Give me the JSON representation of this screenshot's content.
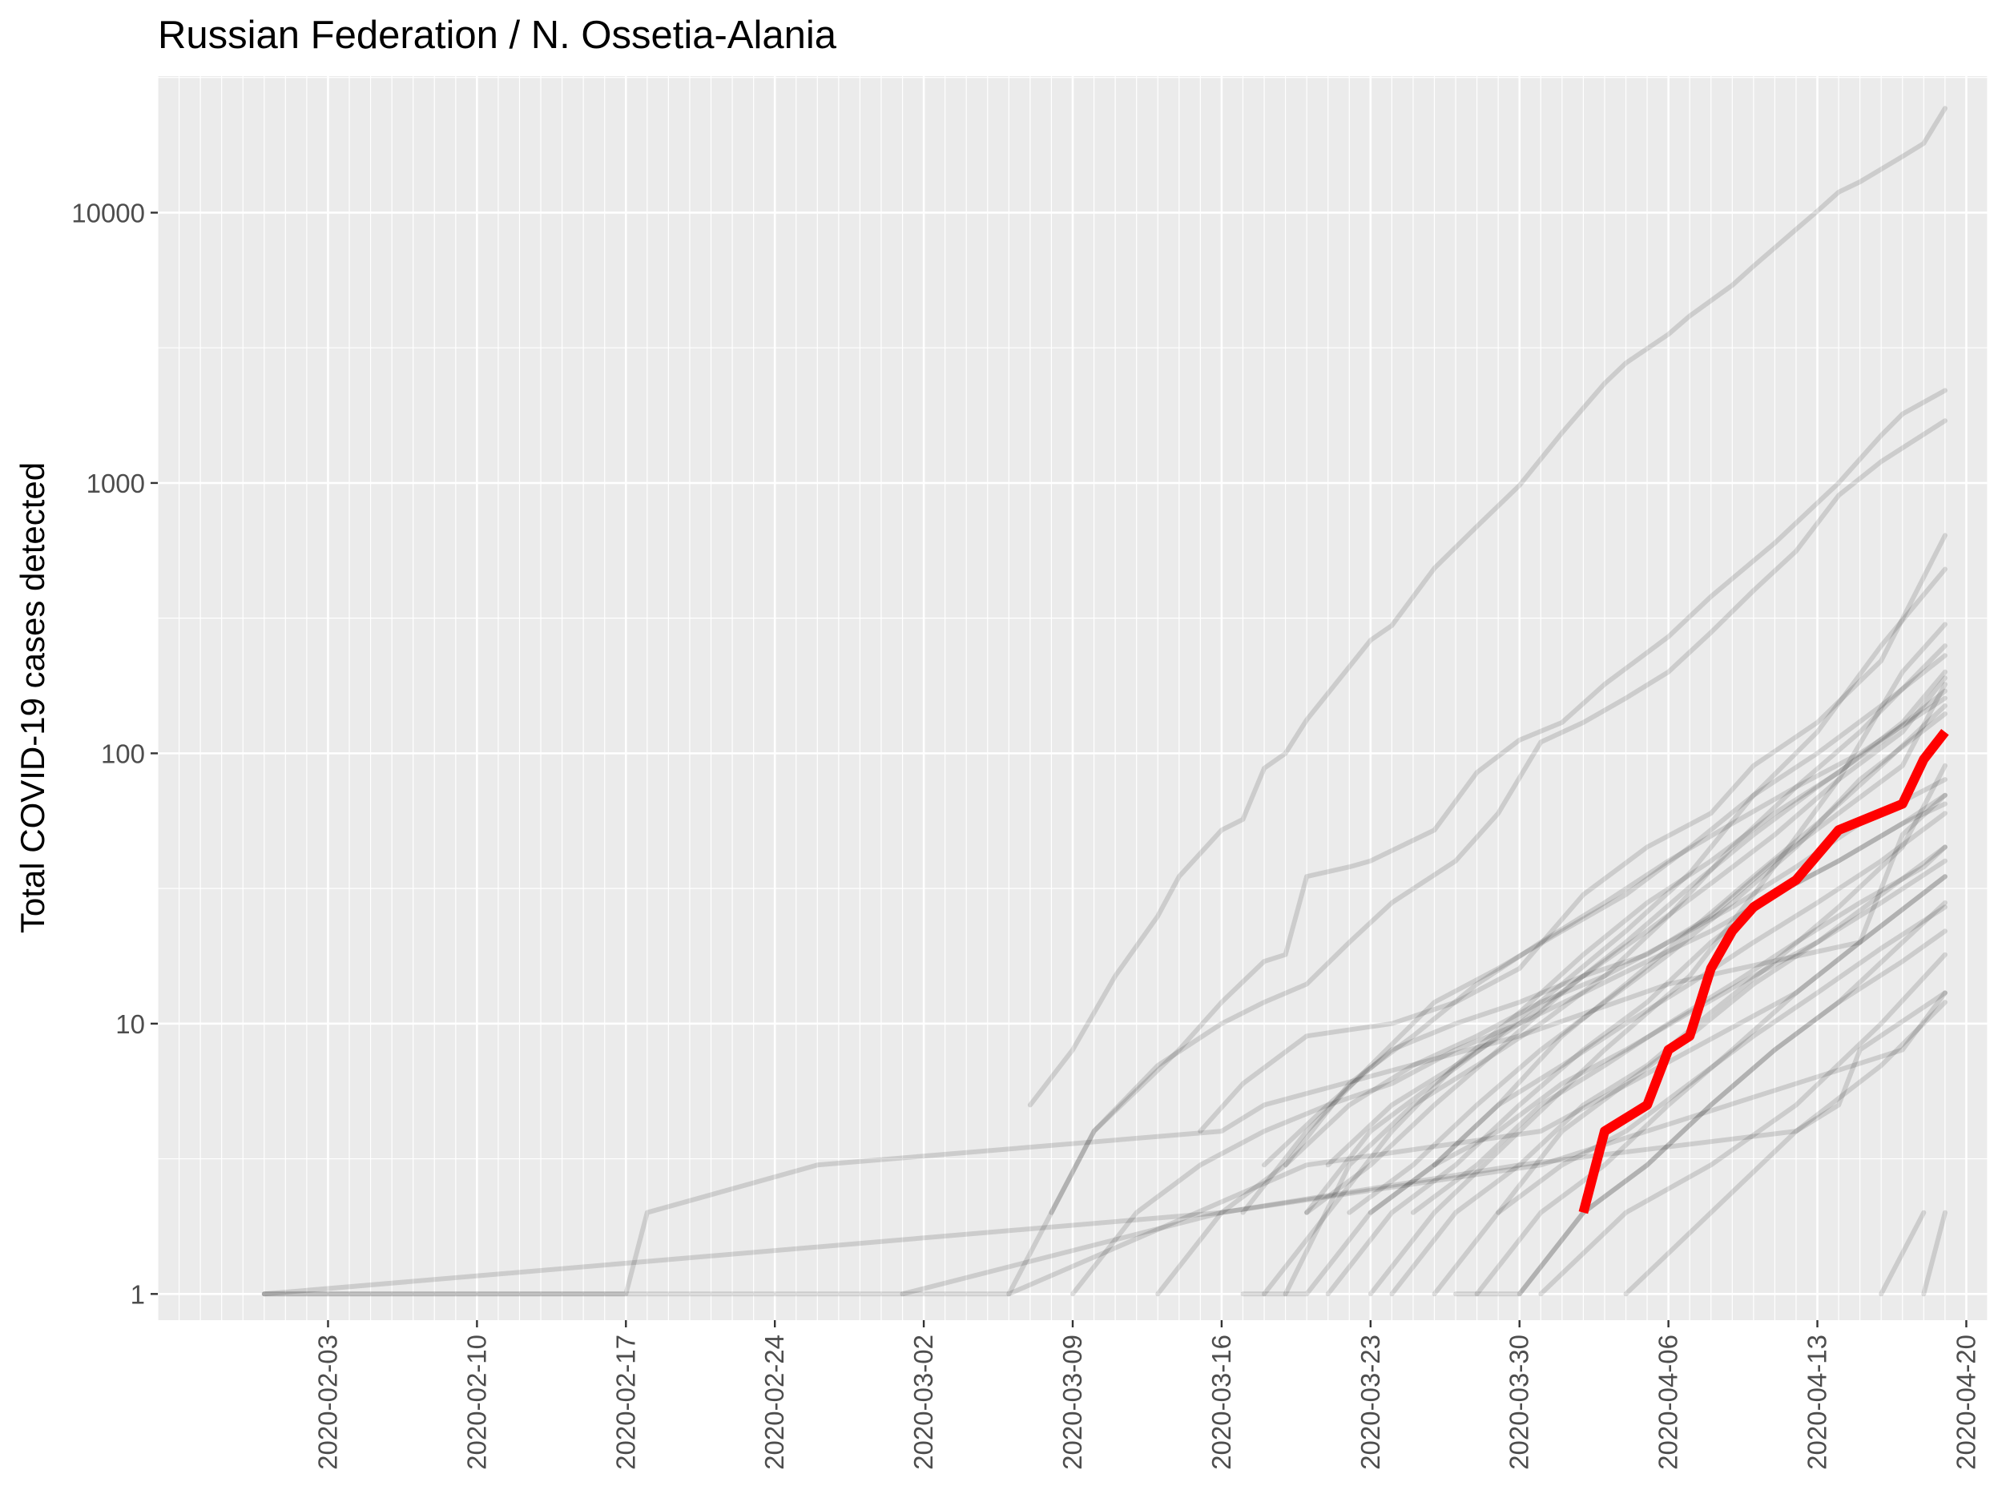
{
  "chart_data": {
    "type": "line",
    "title": "Russian Federation / N. Ossetia-Alania",
    "xlabel": "",
    "ylabel": "Total COVID-19 cases detected",
    "y_scale": "log10",
    "ylim": [
      0.8,
      32000
    ],
    "xlim": [
      "2020-01-26",
      "2020-04-21"
    ],
    "grid": true,
    "legend": "none",
    "x_ticks": [
      "2020-02-03",
      "2020-02-10",
      "2020-02-17",
      "2020-02-24",
      "2020-03-02",
      "2020-03-09",
      "2020-03-16",
      "2020-03-23",
      "2020-03-30",
      "2020-04-06",
      "2020-04-13",
      "2020-04-20"
    ],
    "y_ticks": [
      1,
      10,
      100,
      1000,
      10000
    ],
    "y_tick_labels": [
      "1",
      "10",
      "100",
      "1000",
      "10000"
    ],
    "colors": {
      "panel": "#ebebeb",
      "grid": "#ffffff",
      "background_series": "#000000",
      "highlight": "#ff0000"
    },
    "highlight_series": {
      "x": [
        "2020-04-02",
        "2020-04-03",
        "2020-04-05",
        "2020-04-06",
        "2020-04-07",
        "2020-04-08",
        "2020-04-09",
        "2020-04-10",
        "2020-04-12",
        "2020-04-14",
        "2020-04-17",
        "2020-04-18",
        "2020-04-19"
      ],
      "y": [
        2,
        4,
        5,
        8,
        9,
        16,
        22,
        27,
        34,
        52,
        65,
        95,
        120
      ]
    },
    "series": [
      {
        "x": [
          "2020-01-31",
          "2020-03-06",
          "2020-03-20",
          "2020-03-31",
          "2020-04-12",
          "2020-04-15",
          "2020-04-17",
          "2020-04-19"
        ],
        "y": [
          1,
          1,
          3,
          4,
          13,
          20,
          50,
          70
        ]
      },
      {
        "x": [
          "2020-01-31",
          "2020-02-17",
          "2020-02-18",
          "2020-02-26",
          "2020-03-16",
          "2020-03-18",
          "2020-03-30",
          "2020-04-06",
          "2020-04-15",
          "2020-04-19"
        ],
        "y": [
          1,
          1,
          2,
          3,
          4,
          5,
          9,
          14,
          20,
          35
        ]
      },
      {
        "x": [
          "2020-01-31",
          "2020-03-16",
          "2020-03-31",
          "2020-04-12",
          "2020-04-17",
          "2020-04-19"
        ],
        "y": [
          1,
          2,
          3,
          6,
          8,
          13
        ]
      },
      {
        "x": [
          "2020-03-07",
          "2020-03-09",
          "2020-03-11",
          "2020-03-13",
          "2020-03-14",
          "2020-03-16",
          "2020-03-17",
          "2020-03-18",
          "2020-03-19",
          "2020-03-20",
          "2020-03-23",
          "2020-03-24",
          "2020-03-26",
          "2020-03-28",
          "2020-03-30",
          "2020-04-01",
          "2020-04-03",
          "2020-04-04",
          "2020-04-06",
          "2020-04-07",
          "2020-04-09",
          "2020-04-10",
          "2020-04-12",
          "2020-04-13",
          "2020-04-14",
          "2020-04-15",
          "2020-04-17",
          "2020-04-18",
          "2020-04-19"
        ],
        "y": [
          5,
          8,
          15,
          25,
          35,
          52,
          57,
          88,
          100,
          133,
          262,
          297,
          484,
          691,
          980,
          1534,
          2337,
          2777,
          3548,
          4149,
          5389,
          6343,
          8672,
          10131,
          11917,
          13002,
          16146,
          18041,
          24324
        ]
      },
      {
        "x": [
          "2020-03-06",
          "2020-03-10",
          "2020-03-14",
          "2020-03-16",
          "2020-03-18",
          "2020-03-19",
          "2020-03-20",
          "2020-03-22",
          "2020-03-23",
          "2020-03-26",
          "2020-03-28",
          "2020-03-30",
          "2020-04-01",
          "2020-04-03",
          "2020-04-06",
          "2020-04-08",
          "2020-04-11",
          "2020-04-14",
          "2020-04-16",
          "2020-04-17",
          "2020-04-19"
        ],
        "y": [
          1,
          4,
          8,
          12,
          17,
          18,
          35,
          38,
          40,
          52,
          85,
          112,
          130,
          180,
          270,
          380,
          600,
          1000,
          1500,
          1800,
          2200
        ]
      },
      {
        "x": [
          "2020-03-08",
          "2020-03-10",
          "2020-03-13",
          "2020-03-16",
          "2020-03-18",
          "2020-03-20",
          "2020-03-22",
          "2020-03-24",
          "2020-03-27",
          "2020-03-29",
          "2020-03-31",
          "2020-04-02",
          "2020-04-04",
          "2020-04-06",
          "2020-04-08",
          "2020-04-10",
          "2020-04-12",
          "2020-04-14",
          "2020-04-16",
          "2020-04-19"
        ],
        "y": [
          2,
          4,
          7,
          10,
          12,
          14,
          20,
          28,
          40,
          60,
          110,
          130,
          160,
          200,
          280,
          400,
          560,
          900,
          1200,
          1700
        ]
      },
      {
        "x": [
          "2020-03-15",
          "2020-03-17",
          "2020-03-20",
          "2020-03-24",
          "2020-03-27",
          "2020-03-30",
          "2020-04-02",
          "2020-04-05",
          "2020-04-08",
          "2020-04-10",
          "2020-04-13",
          "2020-04-16",
          "2020-04-19"
        ],
        "y": [
          4,
          6,
          9,
          10,
          12,
          16,
          30,
          45,
          60,
          90,
          130,
          220,
          640
        ]
      },
      {
        "x": [
          "2020-03-20",
          "2020-03-23",
          "2020-03-26",
          "2020-03-29",
          "2020-04-01",
          "2020-04-04",
          "2020-04-07",
          "2020-04-10",
          "2020-04-13",
          "2020-04-16",
          "2020-04-19"
        ],
        "y": [
          2,
          4,
          6,
          9,
          14,
          22,
          36,
          70,
          120,
          250,
          480
        ]
      },
      {
        "x": [
          "2020-03-23",
          "2020-03-26",
          "2020-03-30",
          "2020-04-03",
          "2020-04-07",
          "2020-04-10",
          "2020-04-14",
          "2020-04-17",
          "2020-04-19"
        ],
        "y": [
          1,
          2,
          4,
          8,
          15,
          30,
          80,
          200,
          300
        ]
      },
      {
        "x": [
          "2020-03-19",
          "2020-03-22",
          "2020-03-25",
          "2020-03-28",
          "2020-03-31",
          "2020-04-03",
          "2020-04-06",
          "2020-04-09",
          "2020-04-12",
          "2020-04-15",
          "2020-04-19"
        ],
        "y": [
          1,
          3,
          5,
          7,
          10,
          15,
          25,
          45,
          75,
          120,
          250
        ]
      },
      {
        "x": [
          "2020-03-18",
          "2020-03-21",
          "2020-03-24",
          "2020-03-27",
          "2020-03-30",
          "2020-04-02",
          "2020-04-05",
          "2020-04-08",
          "2020-04-11",
          "2020-04-14",
          "2020-04-17",
          "2020-04-19"
        ],
        "y": [
          3,
          5,
          8,
          10,
          12,
          15,
          18,
          25,
          40,
          60,
          90,
          180
        ]
      },
      {
        "x": [
          "2020-03-21",
          "2020-03-24",
          "2020-03-27",
          "2020-03-30",
          "2020-04-02",
          "2020-04-05",
          "2020-04-08",
          "2020-04-11",
          "2020-04-14",
          "2020-04-17",
          "2020-04-19"
        ],
        "y": [
          1,
          2,
          3,
          5,
          8,
          12,
          20,
          30,
          40,
          55,
          65
        ]
      },
      {
        "x": [
          "2020-03-26",
          "2020-03-29",
          "2020-04-01",
          "2020-04-04",
          "2020-04-07",
          "2020-04-10",
          "2020-04-13",
          "2020-04-16",
          "2020-04-19"
        ],
        "y": [
          1,
          2,
          4,
          6,
          9,
          14,
          20,
          30,
          45
        ]
      },
      {
        "x": [
          "2020-03-28",
          "2020-03-31",
          "2020-04-03",
          "2020-04-06",
          "2020-04-09",
          "2020-04-12",
          "2020-04-15",
          "2020-04-19"
        ],
        "y": [
          1,
          2,
          3,
          5,
          8,
          13,
          20,
          35
        ]
      },
      {
        "x": [
          "2020-03-17",
          "2020-03-20",
          "2020-03-23",
          "2020-03-26",
          "2020-03-29",
          "2020-04-01",
          "2020-04-04",
          "2020-04-07",
          "2020-04-10",
          "2020-04-13",
          "2020-04-16",
          "2020-04-19"
        ],
        "y": [
          2,
          4,
          7,
          12,
          16,
          22,
          30,
          45,
          70,
          100,
          150,
          230
        ]
      },
      {
        "x": [
          "2020-03-19",
          "2020-03-22",
          "2020-03-25",
          "2020-03-28",
          "2020-03-31",
          "2020-04-03",
          "2020-04-06",
          "2020-04-09",
          "2020-04-12",
          "2020-04-15",
          "2020-04-19"
        ],
        "y": [
          3,
          6,
          9,
          14,
          20,
          28,
          40,
          55,
          75,
          100,
          160
        ]
      },
      {
        "x": [
          "2020-03-22",
          "2020-03-25",
          "2020-03-28",
          "2020-03-31",
          "2020-04-03",
          "2020-04-06",
          "2020-04-09",
          "2020-04-12",
          "2020-04-15",
          "2020-04-19"
        ],
        "y": [
          2,
          3,
          5,
          8,
          12,
          18,
          28,
          45,
          80,
          140
        ]
      },
      {
        "x": [
          "2020-03-24",
          "2020-03-27",
          "2020-03-30",
          "2020-04-02",
          "2020-04-05",
          "2020-04-08",
          "2020-04-11",
          "2020-04-14",
          "2020-04-17",
          "2020-04-19"
        ],
        "y": [
          1,
          2,
          3,
          5,
          7,
          11,
          17,
          27,
          45,
          90
        ]
      },
      {
        "x": [
          "2020-03-27",
          "2020-03-30",
          "2020-04-02",
          "2020-04-05",
          "2020-04-08",
          "2020-04-11",
          "2020-04-14",
          "2020-04-17",
          "2020-04-19"
        ],
        "y": [
          1,
          1,
          2,
          3,
          5,
          8,
          12,
          17,
          22
        ]
      },
      {
        "x": [
          "2020-03-30",
          "2020-04-02",
          "2020-04-05",
          "2020-04-08",
          "2020-04-11",
          "2020-04-14",
          "2020-04-17",
          "2020-04-19"
        ],
        "y": [
          1,
          2,
          3,
          5,
          8,
          12,
          20,
          28
        ]
      },
      {
        "x": [
          "2020-03-31",
          "2020-04-04",
          "2020-04-08",
          "2020-04-12",
          "2020-04-16",
          "2020-04-19"
        ],
        "y": [
          1,
          2,
          3,
          5,
          10,
          18
        ]
      },
      {
        "x": [
          "2020-04-04",
          "2020-04-08",
          "2020-04-12",
          "2020-04-16",
          "2020-04-19"
        ],
        "y": [
          1,
          2,
          4,
          7,
          12
        ]
      },
      {
        "x": [
          "2020-03-18",
          "2020-03-21",
          "2020-03-24",
          "2020-03-27",
          "2020-03-30",
          "2020-04-02",
          "2020-04-05",
          "2020-04-08",
          "2020-04-11",
          "2020-04-14",
          "2020-04-17",
          "2020-04-19"
        ],
        "y": [
          1,
          2,
          4,
          7,
          11,
          18,
          28,
          40,
          60,
          85,
          130,
          200
        ]
      },
      {
        "x": [
          "2020-03-20",
          "2020-03-23",
          "2020-03-26",
          "2020-03-29",
          "2020-04-01",
          "2020-04-04",
          "2020-04-07",
          "2020-04-10",
          "2020-04-13",
          "2020-04-16",
          "2020-04-19"
        ],
        "y": [
          2,
          3,
          5,
          8,
          13,
          20,
          32,
          50,
          75,
          110,
          170
        ]
      },
      {
        "x": [
          "2020-03-25",
          "2020-03-28",
          "2020-03-31",
          "2020-04-03",
          "2020-04-06",
          "2020-04-09",
          "2020-04-12",
          "2020-04-15",
          "2020-04-18",
          "2020-04-19"
        ],
        "y": [
          2,
          3,
          5,
          7,
          10,
          14,
          20,
          28,
          38,
          45
        ]
      },
      {
        "x": [
          "2020-03-17",
          "2020-03-20",
          "2020-03-23",
          "2020-03-26",
          "2020-03-29",
          "2020-04-01",
          "2020-04-04",
          "2020-04-07",
          "2020-04-10",
          "2020-04-13",
          "2020-04-16",
          "2020-04-19"
        ],
        "y": [
          1,
          1,
          2,
          3,
          4,
          6,
          8,
          11,
          15,
          20,
          28,
          40
        ]
      },
      {
        "x": [
          "2020-03-21",
          "2020-03-24",
          "2020-03-27",
          "2020-03-30",
          "2020-04-02",
          "2020-04-05",
          "2020-04-08",
          "2020-04-11",
          "2020-04-14",
          "2020-04-17",
          "2020-04-19"
        ],
        "y": [
          3,
          5,
          7,
          10,
          15,
          22,
          33,
          50,
          80,
          120,
          190
        ]
      },
      {
        "x": [
          "2020-03-23",
          "2020-03-26",
          "2020-03-29",
          "2020-04-01",
          "2020-04-04",
          "2020-04-07",
          "2020-04-10",
          "2020-04-13",
          "2020-04-16",
          "2020-04-19"
        ],
        "y": [
          2,
          3,
          5,
          9,
          14,
          22,
          35,
          55,
          90,
          150
        ]
      },
      {
        "x": [
          "2020-03-26",
          "2020-03-29",
          "2020-04-01",
          "2020-04-04",
          "2020-04-07",
          "2020-04-10",
          "2020-04-13",
          "2020-04-16",
          "2020-04-19"
        ],
        "y": [
          3,
          5,
          7,
          10,
          14,
          20,
          28,
          40,
          60
        ]
      },
      {
        "x": [
          "2020-03-29",
          "2020-04-01",
          "2020-04-04",
          "2020-04-07",
          "2020-04-10",
          "2020-04-13",
          "2020-04-16",
          "2020-04-19"
        ],
        "y": [
          2,
          3,
          4,
          6,
          9,
          13,
          19,
          27
        ]
      },
      {
        "x": [
          "2020-03-13",
          "2020-03-16",
          "2020-03-19",
          "2020-03-22",
          "2020-03-25",
          "2020-03-28",
          "2020-03-31",
          "2020-04-03",
          "2020-04-06",
          "2020-04-09",
          "2020-04-12",
          "2020-04-15",
          "2020-04-19"
        ],
        "y": [
          1,
          2,
          3,
          5,
          7,
          9,
          12,
          15,
          20,
          27,
          38,
          55,
          80
        ]
      },
      {
        "x": [
          "2020-03-09",
          "2020-03-12",
          "2020-03-15",
          "2020-03-18",
          "2020-03-21",
          "2020-03-24",
          "2020-03-27",
          "2020-03-30",
          "2020-04-02",
          "2020-04-05",
          "2020-04-08",
          "2020-04-11",
          "2020-04-14",
          "2020-04-17",
          "2020-04-19"
        ],
        "y": [
          1,
          2,
          3,
          4,
          5,
          6,
          8,
          10,
          13,
          17,
          22,
          30,
          40,
          55,
          70
        ]
      },
      {
        "x": [
          "2020-04-16",
          "2020-04-18"
        ],
        "y": [
          1,
          2
        ]
      },
      {
        "x": [
          "2020-04-18",
          "2020-04-19"
        ],
        "y": [
          1,
          2
        ]
      },
      {
        "x": [
          "2020-03-01",
          "2020-03-16",
          "2020-03-30",
          "2020-04-12",
          "2020-04-14",
          "2020-04-15",
          "2020-04-19"
        ],
        "y": [
          1,
          2,
          3,
          4,
          5,
          8,
          13
        ]
      }
    ]
  }
}
